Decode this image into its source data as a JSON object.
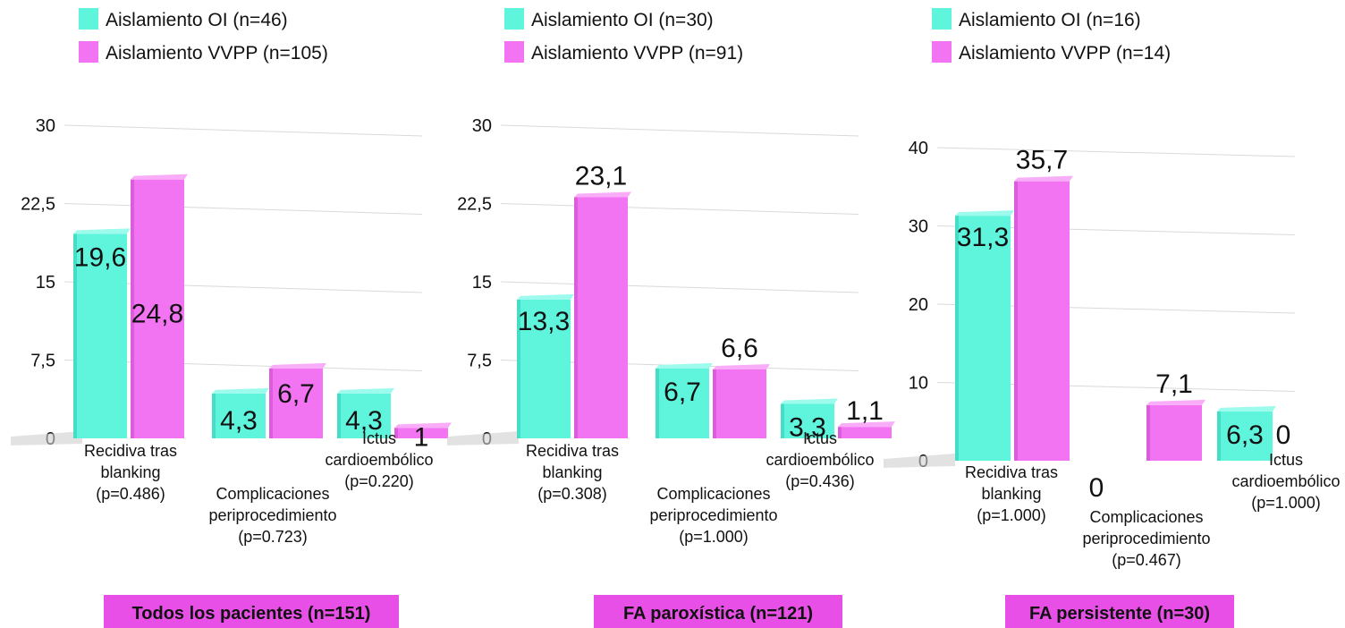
{
  "colors": {
    "oi": "#5ff5dd",
    "oi_dark": "#2fc9b3",
    "oi_top": "#9dfbee",
    "vvpp": "#f374f2",
    "vvpp_dark": "#c84ac9",
    "vvpp_top": "#f9adf9",
    "title_bg": "#e84fe6",
    "grid": "#d9d9d9"
  },
  "chart_data": [
    {
      "type": "bar",
      "title": "Todos los pacientes (n=151)",
      "categories": [
        [
          "Recidiva tras",
          "blanking",
          "(p=0.486)"
        ],
        [
          "Complicaciones",
          "periprocedimiento",
          "(p=0.723)"
        ],
        [
          "Ictus",
          "cardioembólico",
          "(p=0.220)"
        ]
      ],
      "series": [
        {
          "name": "Aislamiento OI (n=46)",
          "values": [
            19.6,
            4.3,
            4.3
          ],
          "labels": [
            "19,6",
            "4,3",
            "4,3"
          ]
        },
        {
          "name": "Aislamiento VVPP (n=105)",
          "values": [
            24.8,
            6.7,
            1
          ],
          "labels": [
            "24,8",
            "6,7",
            "1"
          ]
        }
      ],
      "ylim": [
        0,
        30
      ],
      "yticks": [
        0,
        7.5,
        15,
        22.5,
        30
      ],
      "ytick_labels": [
        "0",
        "7,5",
        "15",
        "22,5",
        "30"
      ],
      "xlabel": "",
      "ylabel": "",
      "grid": true,
      "legend": "top-left"
    },
    {
      "type": "bar",
      "title": "FA paroxística (n=121)",
      "categories": [
        [
          "Recidiva tras",
          "blanking",
          "(p=0.308)"
        ],
        [
          "Complicaciones",
          "periprocedimiento",
          "(p=1.000)"
        ],
        [
          "Ictus",
          "cardioembólico",
          "(p=0.436)"
        ]
      ],
      "series": [
        {
          "name": "Aislamiento OI (n=30)",
          "values": [
            13.3,
            6.7,
            3.3
          ],
          "labels": [
            "13,3",
            "6,7",
            "3,3"
          ]
        },
        {
          "name": "Aislamiento VVPP (n=91)",
          "values": [
            23.1,
            6.6,
            1.1
          ],
          "labels": [
            "23,1",
            "6,6",
            "1,1"
          ]
        }
      ],
      "ylim": [
        0,
        30
      ],
      "yticks": [
        0,
        7.5,
        15,
        22.5,
        30
      ],
      "ytick_labels": [
        "0",
        "7,5",
        "15",
        "22,5",
        "30"
      ],
      "xlabel": "",
      "ylabel": "",
      "grid": true,
      "legend": "top-left"
    },
    {
      "type": "bar",
      "title": "FA persistente (n=30)",
      "categories": [
        [
          "Recidiva tras",
          "blanking",
          "(p=1.000)"
        ],
        [
          "Complicaciones",
          "periprocedimiento",
          "(p=0.467)"
        ],
        [
          "Ictus",
          "cardioembólico",
          "(p=1.000)"
        ]
      ],
      "series": [
        {
          "name": "Aislamiento OI (n=16)",
          "values": [
            31.3,
            0,
            6.3
          ],
          "labels": [
            "31,3",
            "0",
            "6,3"
          ]
        },
        {
          "name": "Aislamiento VVPP (n=14)",
          "values": [
            35.7,
            7.1,
            0
          ],
          "labels": [
            "35,7",
            "7,1",
            "0"
          ]
        }
      ],
      "ylim": [
        0,
        40
      ],
      "yticks": [
        0,
        10,
        20,
        30,
        40
      ],
      "ytick_labels": [
        "0",
        "10",
        "20",
        "30",
        "40"
      ],
      "xlabel": "",
      "ylabel": "",
      "grid": true,
      "legend": "top-left"
    }
  ]
}
